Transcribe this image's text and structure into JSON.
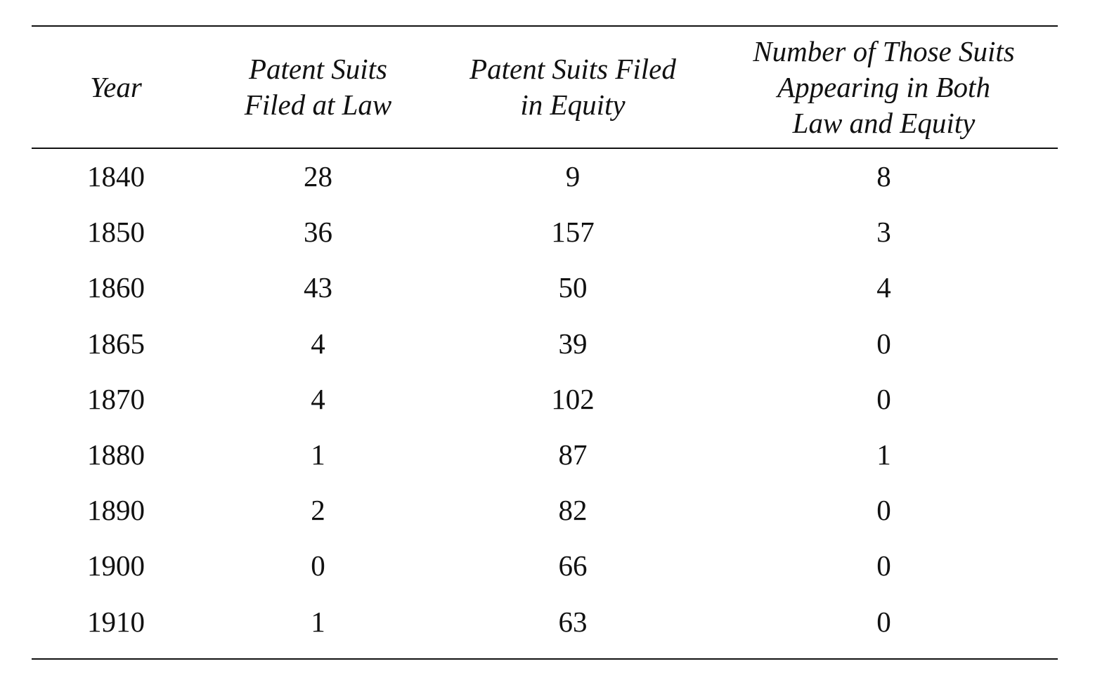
{
  "table": {
    "headers": {
      "year": [
        "Year"
      ],
      "law": [
        "Patent Suits",
        "Filed at Law"
      ],
      "equity": [
        "Patent Suits Filed",
        "in Equity"
      ],
      "both": [
        "Number of Those Suits",
        "Appearing in Both",
        "Law and Equity"
      ]
    },
    "rows": [
      {
        "year": "1840",
        "law": "28",
        "equity": "9",
        "both": "8"
      },
      {
        "year": "1850",
        "law": "36",
        "equity": "157",
        "both": "3"
      },
      {
        "year": "1860",
        "law": "43",
        "equity": "50",
        "both": "4"
      },
      {
        "year": "1865",
        "law": "4",
        "equity": "39",
        "both": "0"
      },
      {
        "year": "1870",
        "law": "4",
        "equity": "102",
        "both": "0"
      },
      {
        "year": "1880",
        "law": "1",
        "equity": "87",
        "both": "1"
      },
      {
        "year": "1890",
        "law": "2",
        "equity": "82",
        "both": "0"
      },
      {
        "year": "1900",
        "law": "0",
        "equity": "66",
        "both": "0"
      },
      {
        "year": "1910",
        "law": "1",
        "equity": "63",
        "both": "0"
      }
    ]
  }
}
